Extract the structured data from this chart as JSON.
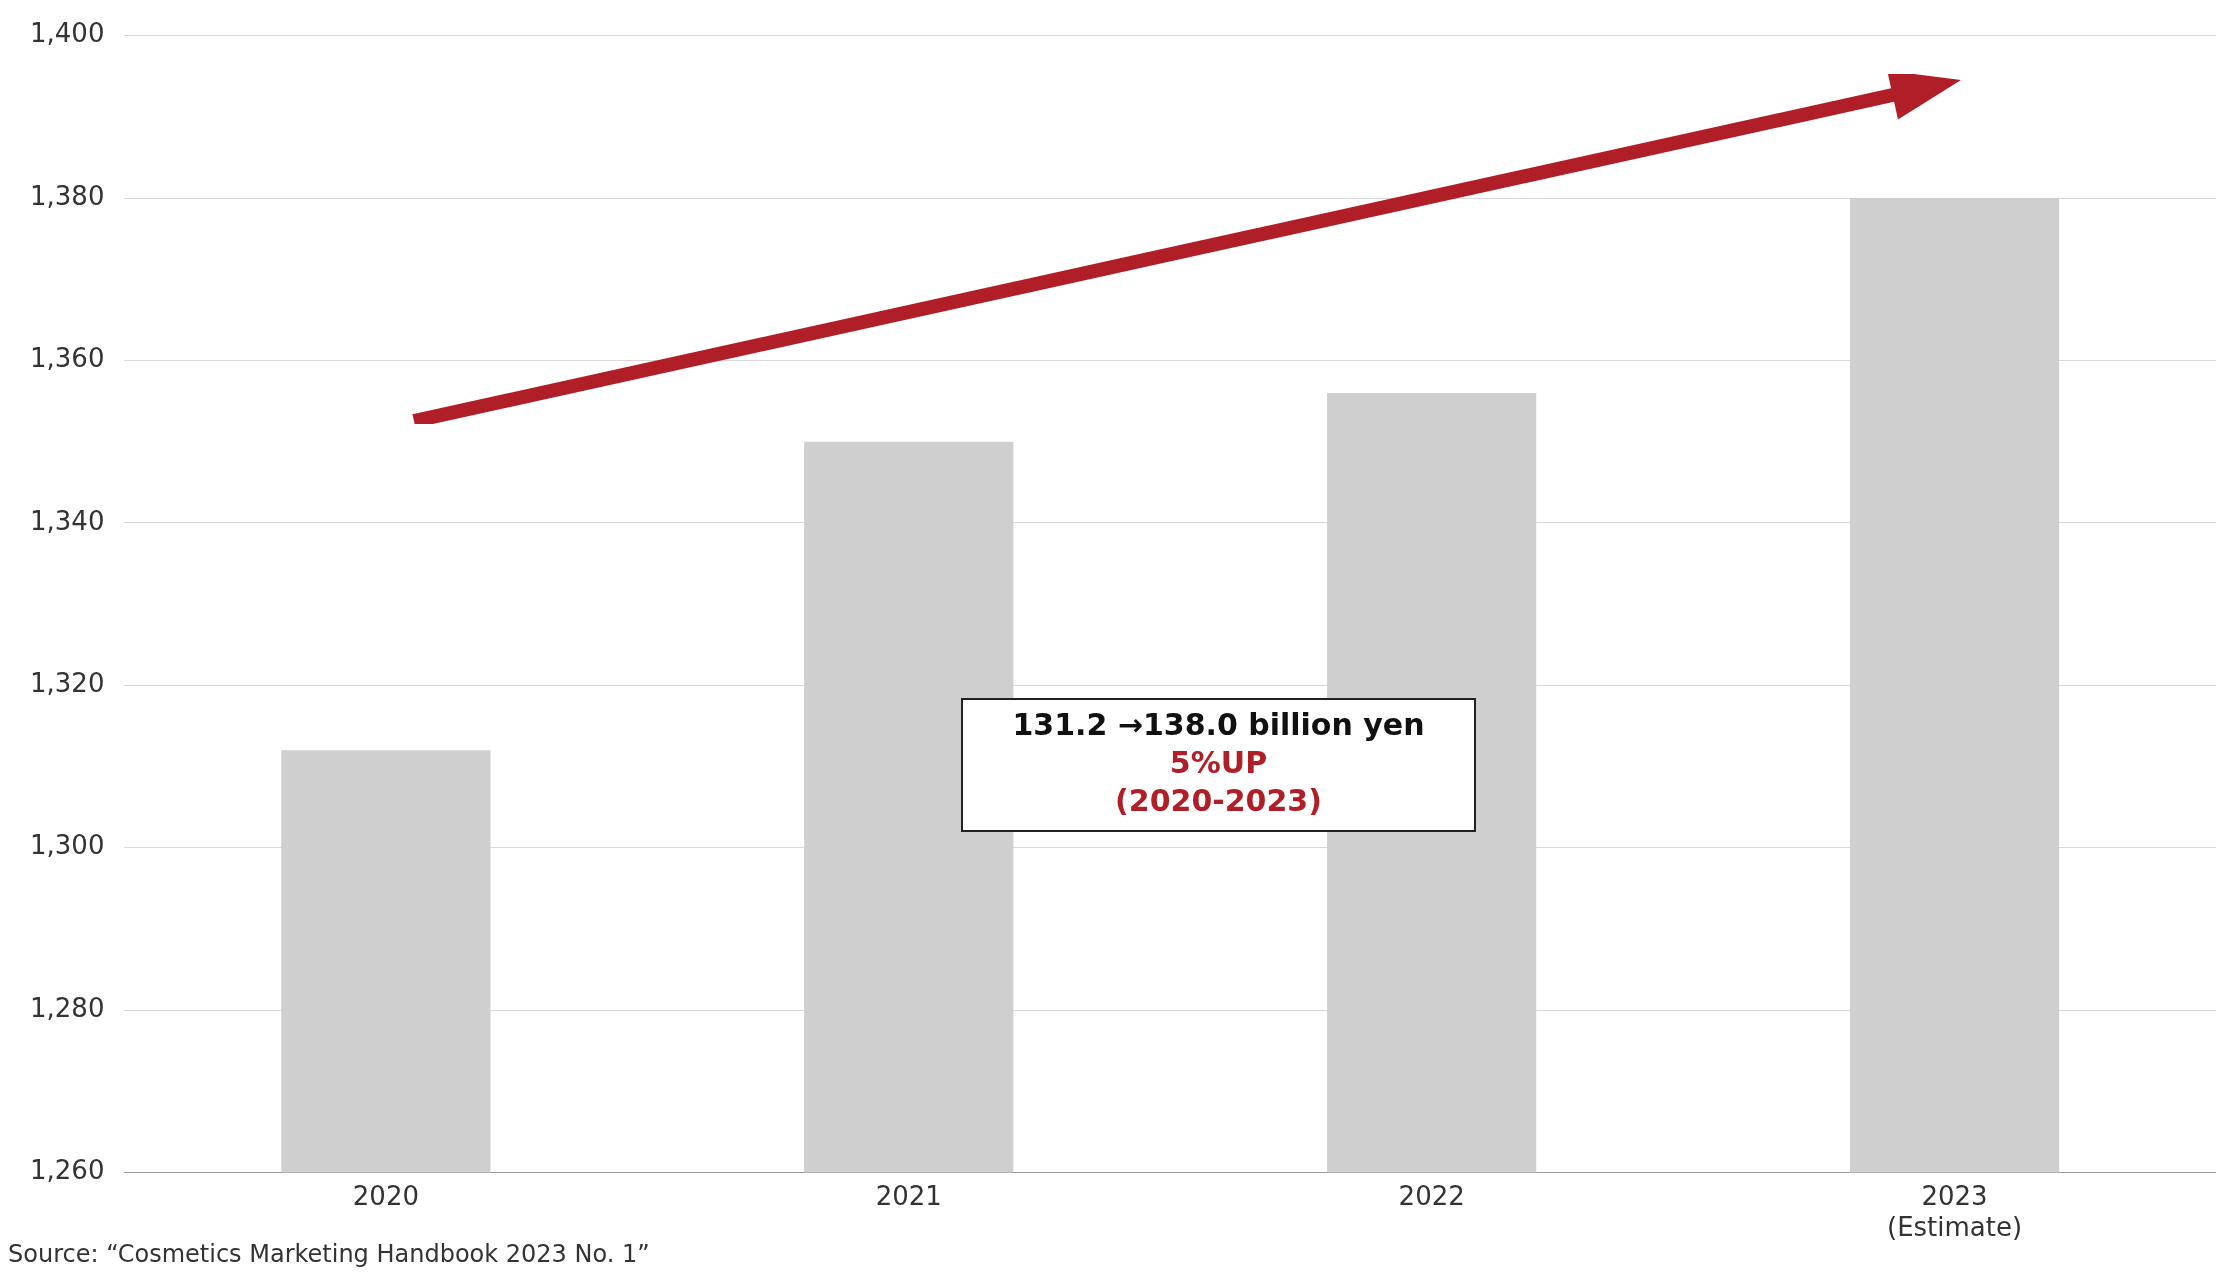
{
  "chart_data": {
    "type": "bar",
    "categories": [
      "2020",
      "2021",
      "2022",
      "2023\n(Estimate)"
    ],
    "values": [
      1312,
      1350,
      1356,
      1380
    ],
    "color": "#d0cfd0",
    "ylim": [
      1260,
      1400
    ],
    "yticks": [
      {
        "value": 1260,
        "label": "1,260"
      },
      {
        "value": 1280,
        "label": "1,280"
      },
      {
        "value": 1300,
        "label": "1,300"
      },
      {
        "value": 1320,
        "label": "1,320"
      },
      {
        "value": 1340,
        "label": "1,340"
      },
      {
        "value": 1360,
        "label": "1,360"
      },
      {
        "value": 1380,
        "label": "1,380"
      },
      {
        "value": 1400,
        "label": "1,400"
      }
    ],
    "grid": "y",
    "legend": false,
    "annotations": [
      "131.2 →138.0 billion yen",
      "5%UP",
      "(2020-2023)",
      "Source: “Cosmetics Marketing Handbook 2023 No. 1”"
    ]
  }
}
